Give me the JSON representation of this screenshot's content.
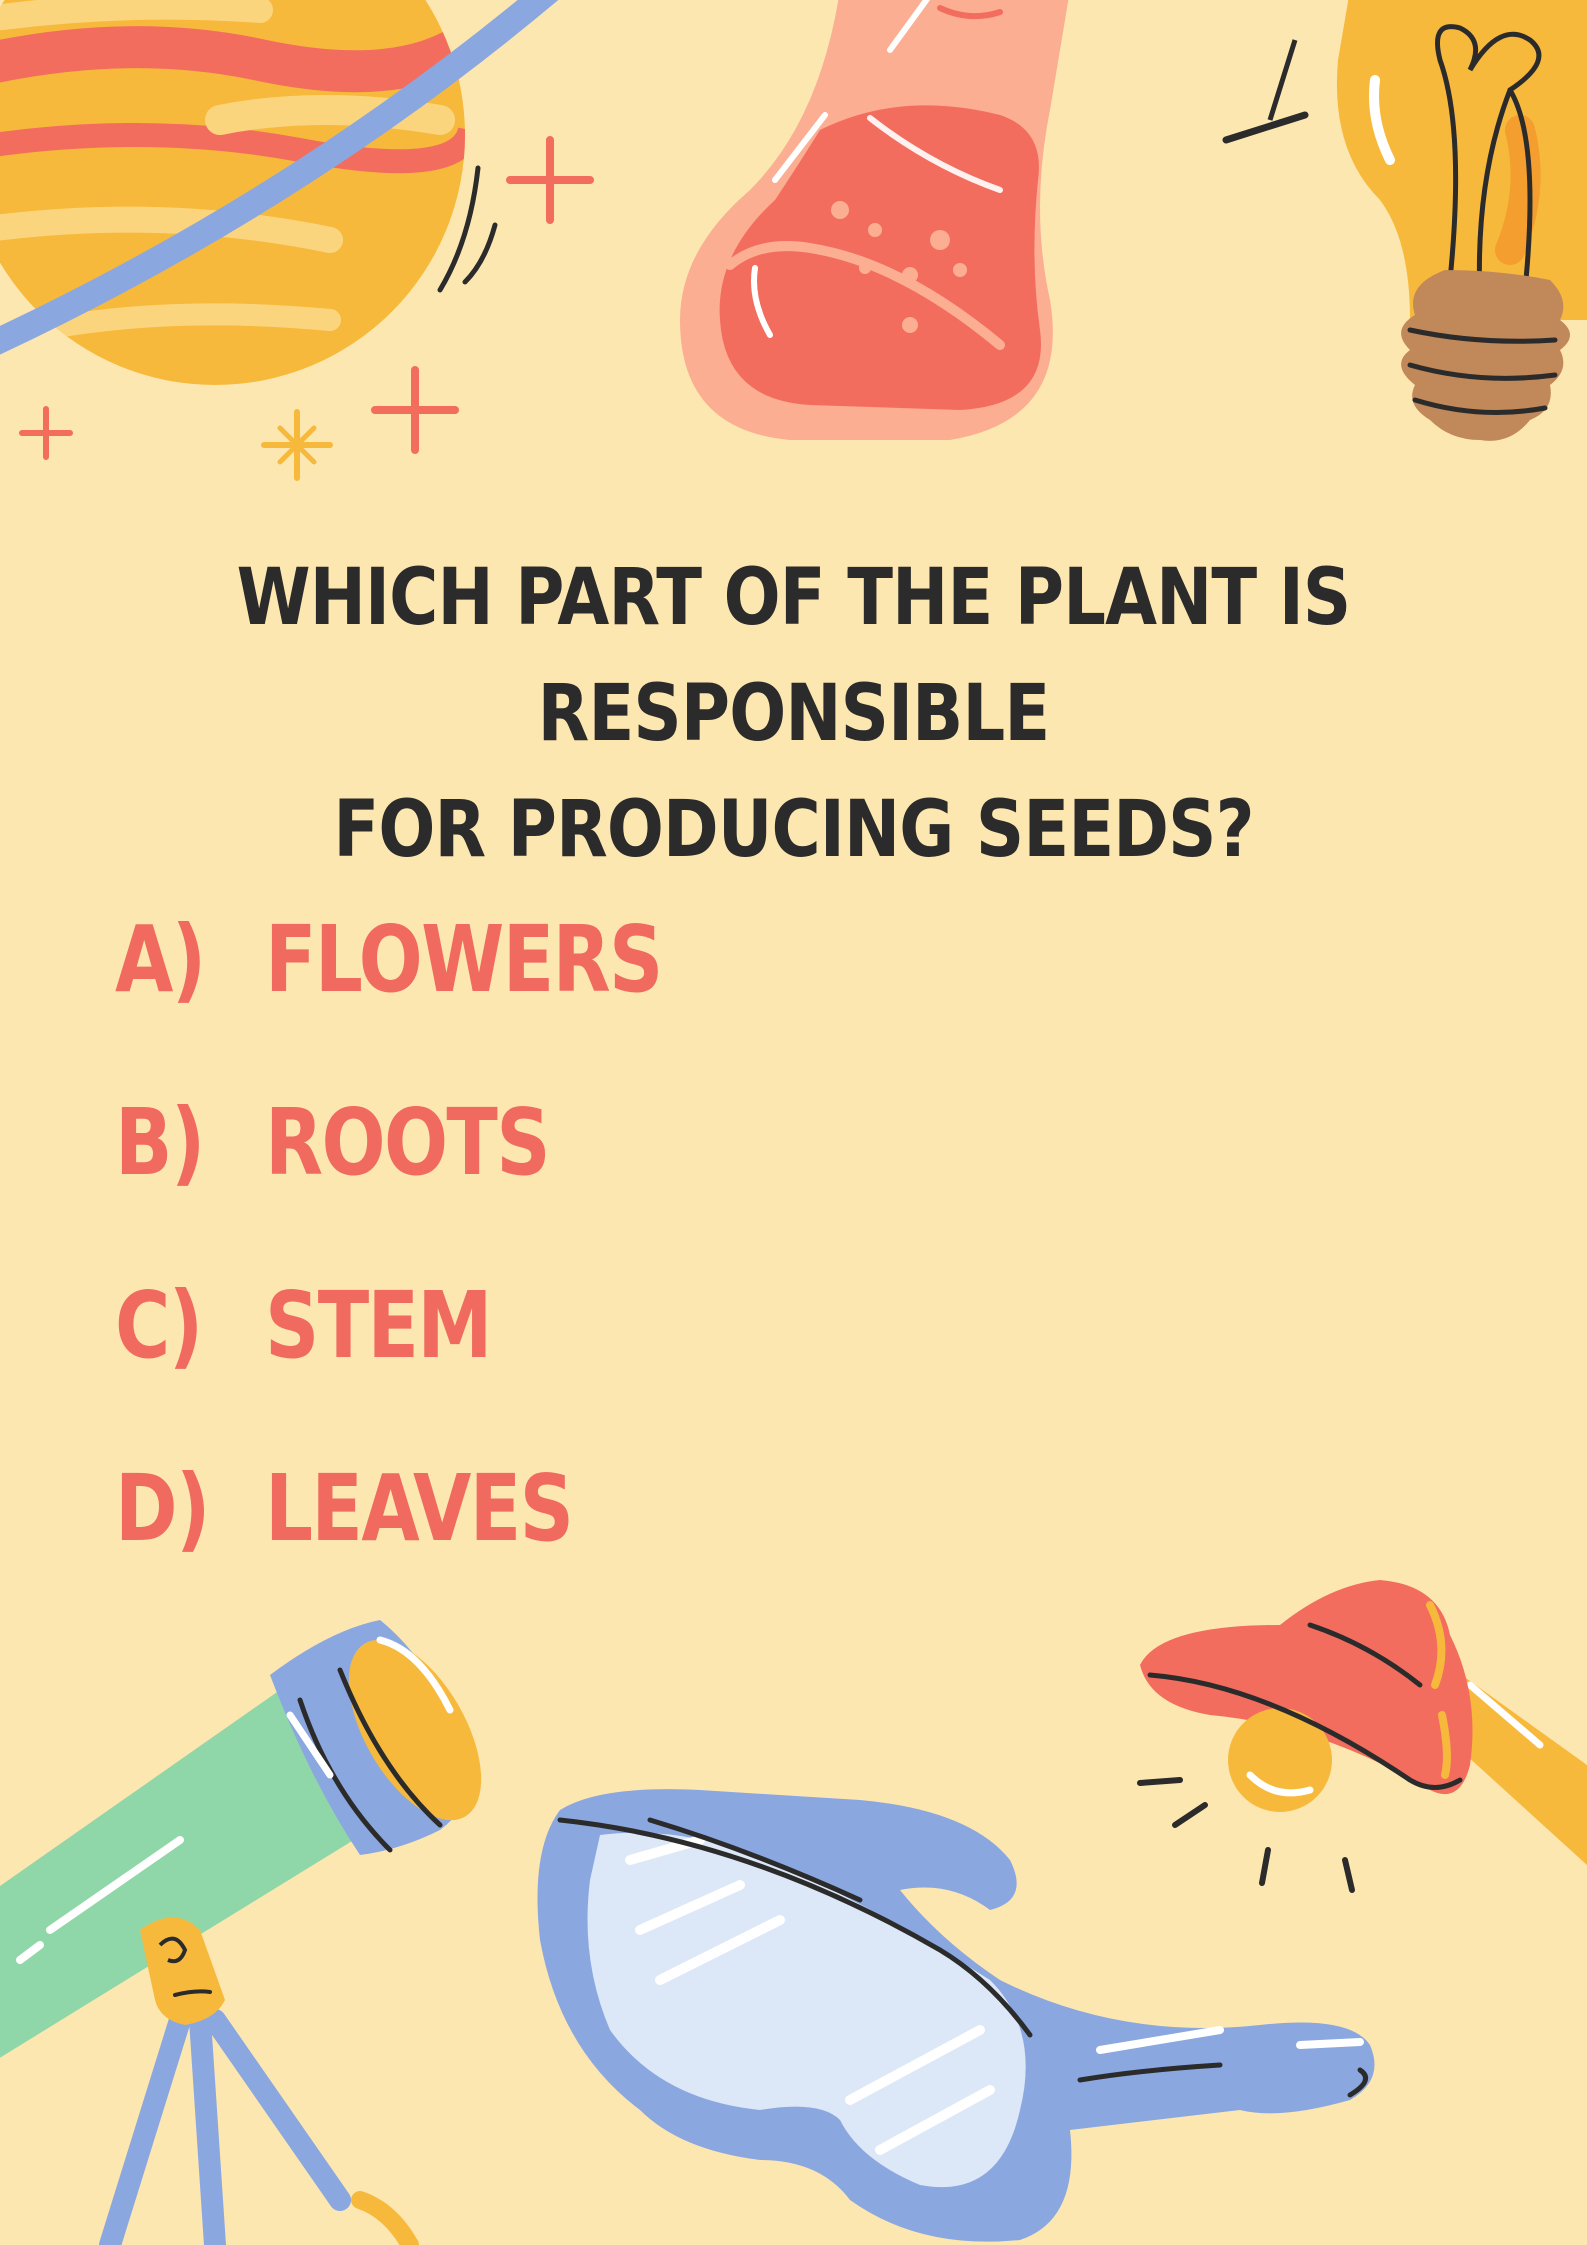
{
  "quiz": {
    "question_line1": "WHICH PART OF THE PLANT IS RESPONSIBLE",
    "question_line2": "FOR PRODUCING SEEDS?",
    "options": [
      {
        "letter": "A)",
        "text": "FLOWERS"
      },
      {
        "letter": "B)",
        "text": "ROOTS"
      },
      {
        "letter": "C)",
        "text": "STEM"
      },
      {
        "letter": "D)",
        "text": "LEAVES"
      }
    ]
  },
  "colors": {
    "background": "#FDE7B1",
    "question_text": "#2B2B2B",
    "option_text": "#F06A60"
  },
  "illustrations": [
    "planet-icon",
    "sparkle-icon",
    "flask-icon",
    "light-bulb-icon",
    "telescope-icon",
    "safety-goggles-icon",
    "desk-lamp-icon"
  ]
}
